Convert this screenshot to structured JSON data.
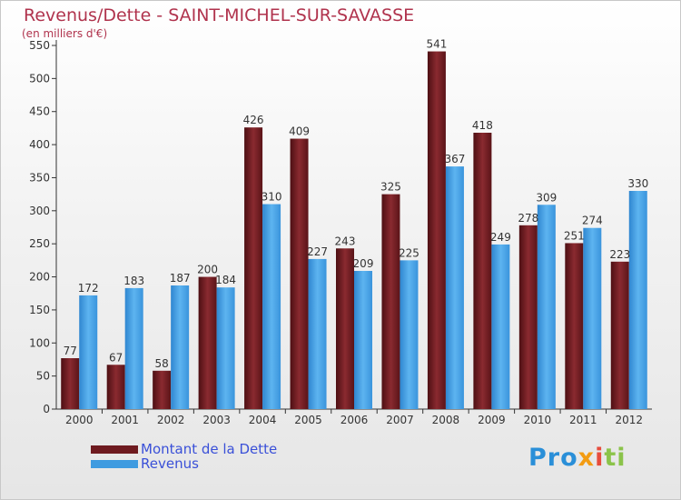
{
  "title": "Revenus/Dette - SAINT-MICHEL-SUR-SAVASSE",
  "subtitle": "(en milliers d'€)",
  "logo": {
    "p1": "Pro",
    "p2": "x",
    "p3": "i",
    "p4": "ti"
  },
  "colors": {
    "dette": "#6e1a1f",
    "revenus": "#3f9be0",
    "title": "#b0334d",
    "legend_text": "#3a50d8"
  },
  "chart_data": {
    "type": "bar",
    "title": "Revenus/Dette - SAINT-MICHEL-SUR-SAVASSE",
    "subtitle": "(en milliers d'€)",
    "categories": [
      "2000",
      "2001",
      "2002",
      "2003",
      "2004",
      "2005",
      "2006",
      "2007",
      "2008",
      "2009",
      "2010",
      "2011",
      "2012"
    ],
    "series": [
      {
        "name": "Montant de la Dette",
        "values": [
          77,
          67,
          58,
          200,
          426,
          409,
          243,
          325,
          541,
          418,
          278,
          251,
          223
        ]
      },
      {
        "name": "Revenus",
        "values": [
          172,
          183,
          187,
          184,
          310,
          227,
          209,
          225,
          367,
          249,
          309,
          274,
          330
        ]
      }
    ],
    "ylim": [
      0,
      550
    ],
    "yticks": [
      0,
      50,
      100,
      150,
      200,
      250,
      300,
      350,
      400,
      450,
      500,
      550
    ],
    "grid": false,
    "legend": "bottom-left"
  }
}
